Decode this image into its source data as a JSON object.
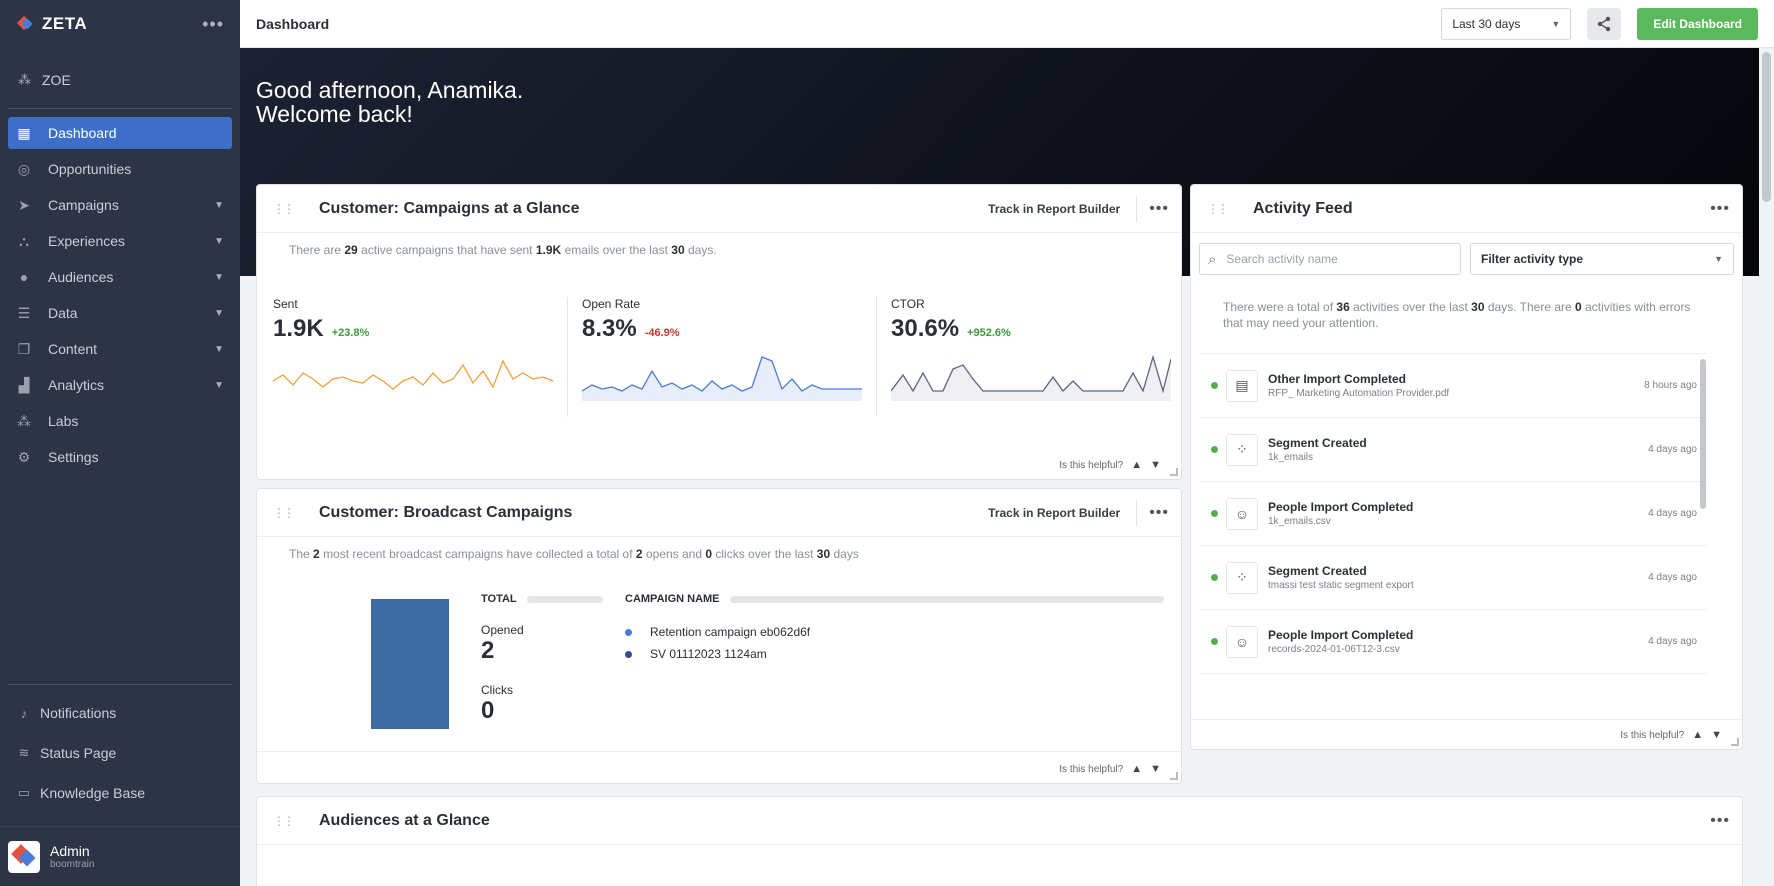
{
  "app": {
    "brand": "ZETA",
    "more_icon": "ellipsis-icon"
  },
  "sidebar": {
    "zoe": "ZOE",
    "items": [
      {
        "label": "Dashboard",
        "icon": "dashboard-icon",
        "active": true,
        "expandable": false
      },
      {
        "label": "Opportunities",
        "icon": "target-icon",
        "expandable": false
      },
      {
        "label": "Campaigns",
        "icon": "paper-plane-icon",
        "expandable": true
      },
      {
        "label": "Experiences",
        "icon": "flow-icon",
        "expandable": true
      },
      {
        "label": "Audiences",
        "icon": "people-icon",
        "expandable": true
      },
      {
        "label": "Data",
        "icon": "database-icon",
        "expandable": true
      },
      {
        "label": "Content",
        "icon": "layers-icon",
        "expandable": true
      },
      {
        "label": "Analytics",
        "icon": "chart-icon",
        "expandable": true
      },
      {
        "label": "Labs",
        "icon": "sparkle-icon",
        "expandable": false
      },
      {
        "label": "Settings",
        "icon": "gear-icon",
        "expandable": false
      }
    ],
    "bottom": [
      {
        "label": "Notifications",
        "icon": "bell-icon"
      },
      {
        "label": "Status Page",
        "icon": "signal-icon"
      },
      {
        "label": "Knowledge Base",
        "icon": "book-icon"
      }
    ],
    "user": {
      "name": "Admin",
      "org": "boomtrain"
    }
  },
  "topbar": {
    "title": "Dashboard",
    "date_range": "Last 30 days",
    "edit_label": "Edit Dashboard"
  },
  "hero": {
    "line1": "Good afternoon, Anamika.",
    "line2": "Welcome back!"
  },
  "campaigns_card": {
    "title": "Customer: Campaigns at a Glance",
    "track_label": "Track in Report Builder",
    "summary": {
      "p1": "There are",
      "active": "29",
      "p2": "active campaigns that have sent",
      "sent": "1.9K",
      "p3": "emails over the last",
      "days": "30",
      "p4": "days."
    },
    "metrics": [
      {
        "label": "Sent",
        "value": "1.9K",
        "change": "+23.8%",
        "trend": "up",
        "color": "#f0a040"
      },
      {
        "label": "Open Rate",
        "value": "8.3%",
        "change": "-46.9%",
        "trend": "down",
        "color": "#4a7bd6"
      },
      {
        "label": "CTOR",
        "value": "30.6%",
        "change": "+952.6%",
        "trend": "up",
        "color": "#5a6585"
      }
    ],
    "helpful": "Is this helpful?"
  },
  "broadcast_card": {
    "title": "Customer: Broadcast Campaigns",
    "track_label": "Track in Report Builder",
    "summary": {
      "p1": "The",
      "count": "2",
      "p2": "most recent broadcast campaigns have collected a total of",
      "opens": "2",
      "p3": "opens and",
      "clicks": "0",
      "p4": "clicks over the last",
      "days": "30",
      "p5": "days"
    },
    "total_header": "TOTAL",
    "name_header": "CAMPAIGN NAME",
    "opened_label": "Opened",
    "opened_value": "2",
    "clicks_label": "Clicks",
    "clicks_value": "0",
    "campaigns": [
      {
        "name": "Retention campaign eb062d6f",
        "color": "#4a7bd6"
      },
      {
        "name": "SV 01112023 1124am",
        "color": "#2f4f8a"
      }
    ],
    "bar_color": "#3d6aa3",
    "helpful": "Is this helpful?"
  },
  "activity_feed": {
    "title": "Activity Feed",
    "search_placeholder": "Search activity name",
    "filter_label": "Filter activity type",
    "summary": {
      "p1": "There were a total of",
      "total": "36",
      "p2": "activities over the last",
      "days": "30",
      "p3": "days. There are",
      "errors": "0",
      "p4": "activities with errors that may need your attention."
    },
    "items": [
      {
        "title": "Other Import Completed",
        "sub": "RFP_ Marketing Automation Provider.pdf",
        "time": "8 hours ago",
        "icon": "file-icon"
      },
      {
        "title": "Segment Created",
        "sub": "1k_emails",
        "time": "4 days ago",
        "icon": "segment-icon"
      },
      {
        "title": "People Import Completed",
        "sub": "1k_emails.csv",
        "time": "4 days ago",
        "icon": "person-icon"
      },
      {
        "title": "Segment Created",
        "sub": "tmassi test static segment export",
        "time": "4 days ago",
        "icon": "segment-icon"
      },
      {
        "title": "People Import Completed",
        "sub": "records-2024-01-06T12-3.csv",
        "time": "4 days ago",
        "icon": "person-icon"
      }
    ],
    "helpful": "Is this helpful?"
  },
  "audiences_card": {
    "title": "Audiences at a Glance"
  }
}
